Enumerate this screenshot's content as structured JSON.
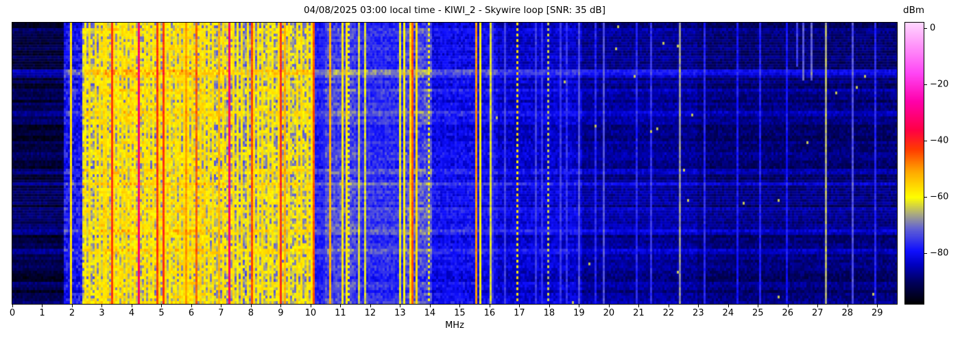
{
  "chart_data": {
    "type": "heatmap",
    "subtype": "radio-spectrogram-waterfall",
    "title": "04/08/2025 03:00 local time - KIWI_2 - Skywire loop [SNR: 35 dB]",
    "xlabel": "MHz",
    "x_ticks": [
      0,
      1,
      2,
      3,
      4,
      5,
      6,
      7,
      8,
      9,
      10,
      11,
      12,
      13,
      14,
      15,
      16,
      17,
      18,
      19,
      20,
      21,
      22,
      23,
      24,
      25,
      26,
      27,
      28,
      29
    ],
    "x_range": [
      0,
      29.66
    ],
    "grid": false,
    "colorbar": {
      "label": "dBm",
      "ticks": [
        0,
        -20,
        -40,
        -60,
        -80
      ],
      "vmax": 2,
      "vmin": -98,
      "position": "right"
    },
    "colormap_stops": [
      [
        -98,
        "#000000"
      ],
      [
        -90,
        "#000060"
      ],
      [
        -84,
        "#0000c0"
      ],
      [
        -79,
        "#1010ff"
      ],
      [
        -71,
        "#6464d2"
      ],
      [
        -66,
        "#aaaa82"
      ],
      [
        -60,
        "#ffff00"
      ],
      [
        -51,
        "#ffaa00"
      ],
      [
        -43,
        "#ff3c00"
      ],
      [
        -36,
        "#ff0046"
      ],
      [
        -26,
        "#ff00aa"
      ],
      [
        -16,
        "#ff46f5"
      ],
      [
        -6,
        "#ff96fa"
      ],
      [
        2,
        "#ffd7ff"
      ]
    ],
    "regions_columns": [
      "freq_start_mhz",
      "freq_end_mhz",
      "noise_floor_dbm",
      "noise_spread_db"
    ],
    "regions": [
      [
        0.0,
        1.75,
        -94,
        4
      ],
      [
        1.75,
        2.35,
        -84,
        10
      ],
      [
        2.35,
        3.0,
        -72,
        16
      ],
      [
        3.0,
        4.2,
        -70,
        16
      ],
      [
        4.2,
        5.2,
        -71,
        16
      ],
      [
        5.2,
        6.5,
        -70,
        16
      ],
      [
        6.5,
        7.4,
        -72,
        16
      ],
      [
        7.4,
        8.3,
        -74,
        14
      ],
      [
        8.3,
        10.15,
        -72,
        15
      ],
      [
        10.15,
        10.5,
        -81,
        6
      ],
      [
        10.5,
        11.5,
        -78,
        8
      ],
      [
        11.5,
        13.1,
        -80,
        7
      ],
      [
        13.1,
        14.1,
        -78,
        9
      ],
      [
        14.1,
        16.3,
        -84,
        7
      ],
      [
        16.3,
        19.1,
        -86,
        6
      ],
      [
        19.1,
        23.0,
        -89,
        5
      ],
      [
        23.0,
        29.66,
        -91,
        5
      ]
    ],
    "stripes_columns": [
      "freq_mhz",
      "width_mhz",
      "level_dbm",
      "dashed",
      "height_frac"
    ],
    "stripes": [
      [
        2.0,
        0.05,
        -57,
        0,
        1
      ],
      [
        2.46,
        0.05,
        -58,
        0,
        1
      ],
      [
        2.6,
        0.05,
        -57,
        0,
        1
      ],
      [
        2.76,
        0.05,
        -57,
        0,
        1
      ],
      [
        2.9,
        0.05,
        -57,
        0,
        1
      ],
      [
        3.05,
        0.05,
        -57,
        0,
        1
      ],
      [
        3.17,
        0.05,
        -57,
        0,
        1
      ],
      [
        3.33,
        0.06,
        -42,
        0,
        1
      ],
      [
        3.44,
        0.05,
        -57,
        0,
        1
      ],
      [
        3.58,
        0.05,
        -59,
        0,
        1
      ],
      [
        3.7,
        0.05,
        -57,
        0,
        1
      ],
      [
        3.85,
        0.05,
        -57,
        0,
        1
      ],
      [
        4.0,
        0.05,
        -57,
        0,
        1
      ],
      [
        4.12,
        0.05,
        -58,
        0,
        1
      ],
      [
        4.27,
        0.08,
        -33,
        0,
        1
      ],
      [
        4.45,
        0.05,
        -57,
        0,
        1
      ],
      [
        4.58,
        0.05,
        -57,
        0,
        1
      ],
      [
        4.72,
        0.05,
        -58,
        0,
        1
      ],
      [
        4.84,
        0.06,
        -43,
        0,
        1
      ],
      [
        4.95,
        0.05,
        -57,
        0,
        1
      ],
      [
        5.06,
        0.06,
        -42,
        0,
        1
      ],
      [
        5.15,
        0.05,
        -57,
        0,
        1
      ],
      [
        5.3,
        0.05,
        -58,
        0,
        1
      ],
      [
        5.45,
        0.05,
        -57,
        0,
        1
      ],
      [
        5.6,
        0.05,
        -57,
        0,
        1
      ],
      [
        5.74,
        0.05,
        -57,
        0,
        1
      ],
      [
        5.8,
        0.05,
        -50,
        0,
        1
      ],
      [
        5.9,
        0.05,
        -58,
        0,
        1
      ],
      [
        6.05,
        0.05,
        -57,
        0,
        1
      ],
      [
        6.19,
        0.05,
        -46,
        0,
        1
      ],
      [
        6.3,
        0.05,
        -57,
        0,
        1
      ],
      [
        6.45,
        0.05,
        -57,
        0,
        1
      ],
      [
        6.57,
        0.05,
        -57,
        0,
        1
      ],
      [
        6.7,
        0.05,
        -57,
        0,
        1
      ],
      [
        6.9,
        0.05,
        -52,
        0,
        1
      ],
      [
        7.05,
        0.05,
        -57,
        0,
        1
      ],
      [
        7.26,
        0.09,
        -33,
        0,
        1
      ],
      [
        7.41,
        0.05,
        -57,
        0,
        1
      ],
      [
        7.55,
        0.05,
        -58,
        0,
        1
      ],
      [
        7.7,
        0.05,
        -57,
        0,
        1
      ],
      [
        7.87,
        0.05,
        -57,
        0,
        1
      ],
      [
        8.02,
        0.06,
        -44,
        0,
        1
      ],
      [
        8.1,
        0.05,
        -57,
        0,
        1
      ],
      [
        8.25,
        0.05,
        -58,
        0,
        1
      ],
      [
        8.4,
        0.05,
        -57,
        0,
        1
      ],
      [
        8.57,
        0.05,
        -57,
        0,
        1
      ],
      [
        8.75,
        0.05,
        -58,
        0,
        1
      ],
      [
        8.9,
        0.05,
        -57,
        0,
        1
      ],
      [
        8.97,
        0.05,
        -49,
        0,
        1
      ],
      [
        9.02,
        0.07,
        -42,
        0,
        1
      ],
      [
        9.15,
        0.05,
        -52,
        0,
        1
      ],
      [
        9.3,
        0.05,
        -57,
        0,
        1
      ],
      [
        9.55,
        0.05,
        -57,
        0,
        1
      ],
      [
        9.7,
        0.05,
        -57,
        0,
        1
      ],
      [
        9.9,
        0.05,
        -57,
        0,
        1
      ],
      [
        10.05,
        0.05,
        -57,
        0,
        1
      ],
      [
        10.08,
        0.05,
        -45,
        0,
        1
      ],
      [
        10.45,
        0.05,
        -78,
        0,
        1
      ],
      [
        10.65,
        0.1,
        -52,
        0,
        1
      ],
      [
        11.08,
        0.05,
        -58,
        0,
        1
      ],
      [
        11.21,
        0.05,
        -58,
        0,
        1
      ],
      [
        11.3,
        0.05,
        -61,
        1,
        1
      ],
      [
        11.62,
        0.05,
        -63,
        0,
        1
      ],
      [
        11.86,
        0.05,
        -63,
        0,
        1
      ],
      [
        11.5,
        0.05,
        -77,
        0,
        1
      ],
      [
        12.0,
        0.05,
        -78,
        0,
        1
      ],
      [
        12.3,
        0.05,
        -79,
        0,
        1
      ],
      [
        12.55,
        0.05,
        -77,
        0,
        1
      ],
      [
        12.8,
        0.05,
        -78,
        0,
        1
      ],
      [
        13.0,
        0.05,
        -61,
        0,
        1
      ],
      [
        13.15,
        0.05,
        -59,
        0,
        1
      ],
      [
        13.33,
        0.05,
        -57,
        0,
        1
      ],
      [
        13.45,
        0.05,
        -45,
        0,
        1
      ],
      [
        13.56,
        0.05,
        -57,
        0,
        1
      ],
      [
        13.95,
        0.05,
        -60,
        1,
        1
      ],
      [
        14.5,
        0.05,
        -80,
        0,
        1
      ],
      [
        14.85,
        0.05,
        -79,
        0,
        1
      ],
      [
        15.52,
        0.06,
        -50,
        0,
        1
      ],
      [
        15.7,
        0.05,
        -60,
        0,
        1
      ],
      [
        16.05,
        0.05,
        -63,
        0,
        1
      ],
      [
        16.1,
        0.05,
        -76,
        0,
        1
      ],
      [
        16.5,
        0.05,
        -75,
        0,
        1
      ],
      [
        16.95,
        0.05,
        -57,
        1,
        1
      ],
      [
        17.55,
        0.05,
        -75,
        0,
        1
      ],
      [
        17.75,
        0.05,
        -76,
        0,
        1
      ],
      [
        17.98,
        0.05,
        -64,
        1,
        1
      ],
      [
        18.4,
        0.05,
        -75,
        0,
        1
      ],
      [
        18.62,
        0.05,
        -76,
        0,
        1
      ],
      [
        19.02,
        0.05,
        -73,
        0,
        1
      ],
      [
        19.55,
        0.05,
        -77,
        0,
        1
      ],
      [
        19.82,
        0.05,
        -73,
        0,
        1
      ],
      [
        20.9,
        0.05,
        -77,
        0,
        1
      ],
      [
        21.45,
        0.05,
        -76,
        0,
        1
      ],
      [
        22.35,
        0.05,
        -68,
        0,
        1
      ],
      [
        23.2,
        0.05,
        -77,
        0,
        1
      ],
      [
        24.3,
        0.05,
        -79,
        0,
        1
      ],
      [
        25.1,
        0.05,
        -78,
        0,
        1
      ],
      [
        26.0,
        0.05,
        -79,
        0,
        1
      ],
      [
        26.3,
        0.06,
        -75,
        0,
        0.15
      ],
      [
        26.55,
        0.08,
        -72,
        0,
        0.2
      ],
      [
        26.8,
        0.1,
        -71,
        0,
        0.2
      ],
      [
        27.25,
        0.05,
        -66,
        0,
        1
      ],
      [
        28.2,
        0.05,
        -73,
        0,
        1
      ],
      [
        28.95,
        0.05,
        -77,
        0,
        1
      ]
    ],
    "time_streaks_columns": [
      "row_frac",
      "boost_db"
    ],
    "time_streaks": [
      [
        0.163,
        8
      ],
      [
        0.175,
        5
      ],
      [
        0.235,
        5
      ],
      [
        0.31,
        4
      ],
      [
        0.52,
        5
      ],
      [
        0.565,
        7
      ],
      [
        0.655,
        4
      ],
      [
        0.74,
        6
      ],
      [
        0.8,
        4
      ]
    ],
    "rows": 102,
    "seed": 7
  }
}
